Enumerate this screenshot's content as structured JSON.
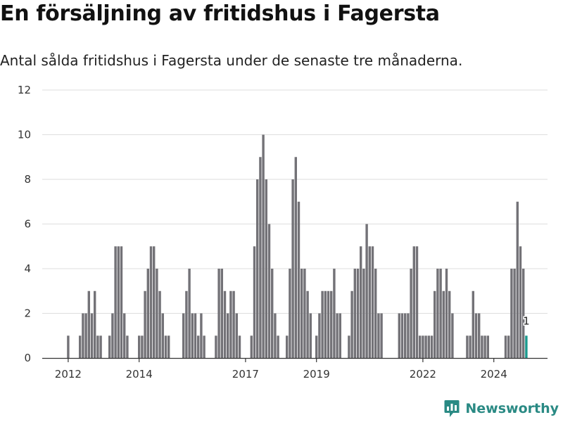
{
  "title": "En försäljning av fritidshus i Fagersta",
  "subtitle": "Antal sålda fritidshus i Fagersta under de senaste tre månaderna.",
  "brand": {
    "name": "Newsworthy",
    "color": "#2a8a84",
    "icon": "newsworthy-logo-icon"
  },
  "colors": {
    "bar": "#737277",
    "highlight": "#1a9a8e",
    "grid": "#dedede"
  },
  "chart_data": {
    "type": "bar",
    "title": "",
    "xlabel": "",
    "ylabel": "",
    "grid": true,
    "ylim": [
      0,
      12
    ],
    "y_ticks": [
      0,
      2,
      4,
      6,
      8,
      10,
      12
    ],
    "x_tick_labels": [
      {
        "label": "2012",
        "index": 1
      },
      {
        "label": "2014",
        "index": 25
      },
      {
        "label": "2017",
        "index": 61
      },
      {
        "label": "2019",
        "index": 85
      },
      {
        "label": "2022",
        "index": 121
      },
      {
        "label": "2024",
        "index": 145
      }
    ],
    "values": [
      0,
      1,
      0,
      0,
      0,
      1,
      2,
      2,
      3,
      2,
      3,
      1,
      1,
      0,
      0,
      1,
      2,
      5,
      5,
      5,
      2,
      1,
      0,
      0,
      0,
      1,
      1,
      3,
      4,
      5,
      5,
      4,
      3,
      2,
      1,
      1,
      0,
      0,
      0,
      0,
      2,
      3,
      4,
      2,
      2,
      1,
      2,
      1,
      0,
      0,
      0,
      1,
      4,
      4,
      3,
      2,
      3,
      3,
      2,
      1,
      0,
      0,
      0,
      1,
      5,
      8,
      9,
      10,
      8,
      6,
      4,
      2,
      1,
      0,
      0,
      1,
      4,
      8,
      9,
      7,
      4,
      4,
      3,
      2,
      0,
      1,
      2,
      3,
      3,
      3,
      3,
      4,
      2,
      2,
      0,
      0,
      1,
      3,
      4,
      4,
      5,
      4,
      6,
      5,
      5,
      4,
      2,
      2,
      0,
      0,
      0,
      0,
      0,
      2,
      2,
      2,
      2,
      4,
      5,
      5,
      1,
      1,
      1,
      1,
      1,
      3,
      4,
      4,
      3,
      4,
      3,
      2,
      0,
      0,
      0,
      0,
      1,
      1,
      3,
      2,
      2,
      1,
      1,
      1,
      0,
      0,
      0,
      0,
      0,
      1,
      1,
      4,
      4,
      7,
      5,
      4,
      1
    ],
    "highlight_index": 156,
    "data_labels": [
      {
        "index": 156,
        "text": "1"
      }
    ]
  }
}
